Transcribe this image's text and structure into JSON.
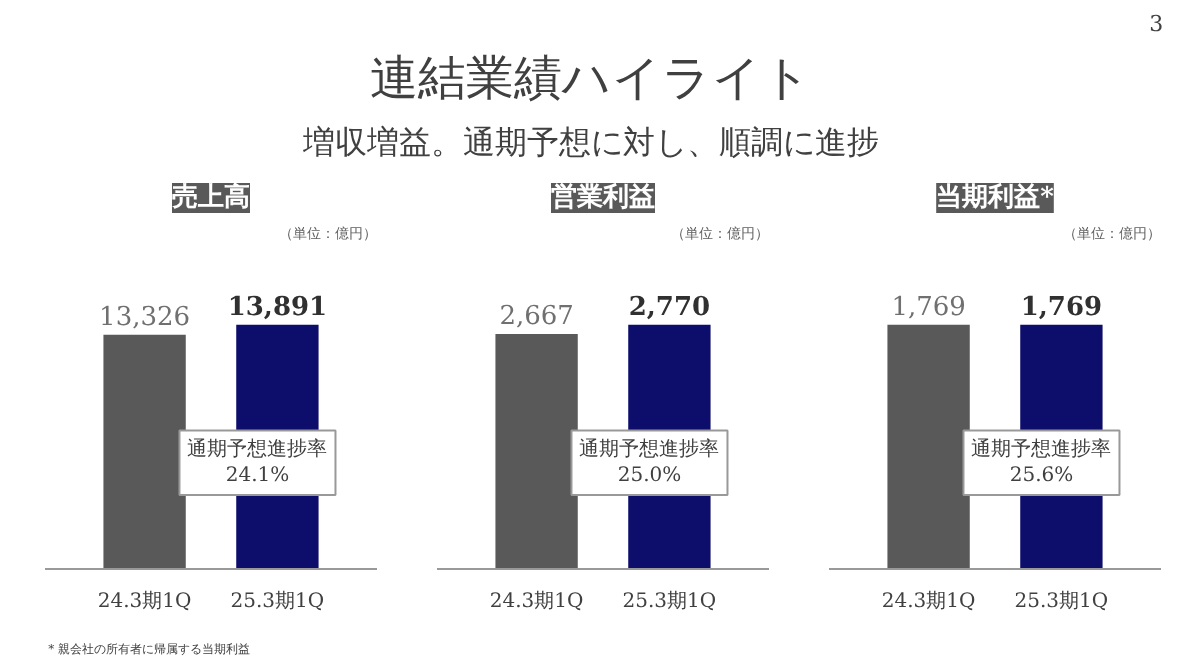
{
  "chart_data": [
    {
      "type": "other",
      "title": "連結業績ハイライト",
      "subtitle": "増収増益。通期予想に対し、順調に進捗",
      "annotations": [
        "3",
        "* 親会社の所有者に帰属する当期利益"
      ]
    },
    {
      "type": "bar",
      "title": "売上高",
      "categories": [
        "24.3期1Q",
        "25.3期1Q"
      ],
      "values": [
        13326,
        13891
      ],
      "value_labels": [
        "13,326",
        "13,891"
      ],
      "colors": [
        "#595959",
        "#0d0d6b"
      ],
      "tick_labels": "x",
      "annotations": [
        "（単位：億円）",
        "通期予想進捗率\n24.1%"
      ]
    },
    {
      "type": "bar",
      "title": "営業利益",
      "categories": [
        "24.3期1Q",
        "25.3期1Q"
      ],
      "values": [
        2667,
        2770
      ],
      "value_labels": [
        "2,667",
        "2,770"
      ],
      "colors": [
        "#595959",
        "#0d0d6b"
      ],
      "tick_labels": "x",
      "annotations": [
        "（単位：億円）",
        "通期予想進捗率\n25.0%"
      ]
    },
    {
      "type": "bar",
      "title": "当期利益*",
      "categories": [
        "24.3期1Q",
        "25.3期1Q"
      ],
      "values": [
        1769,
        1769
      ],
      "value_labels": [
        "1,769",
        "1,769"
      ],
      "colors": [
        "#595959",
        "#0d0d6b"
      ],
      "tick_labels": "x",
      "annotations": [
        "（単位：億円）",
        "通期予想進捗率\n25.6%"
      ]
    }
  ]
}
